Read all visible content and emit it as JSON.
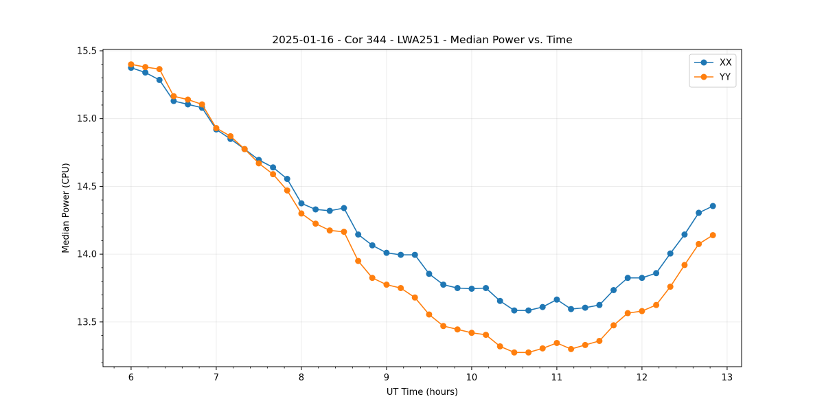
{
  "chart_data": {
    "type": "line",
    "title": "2025-01-16 - Cor 344 - LWA251 - Median Power vs. Time",
    "xlabel": "UT Time (hours)",
    "ylabel": "Median Power (CPU)",
    "xlim": [
      5.67,
      13.17
    ],
    "ylim": [
      13.17,
      15.51
    ],
    "xticks": [
      6,
      7,
      8,
      9,
      10,
      11,
      12,
      13
    ],
    "yticks": [
      13.5,
      14.0,
      14.5,
      15.0,
      15.5
    ],
    "xtick_labels": [
      "6",
      "7",
      "8",
      "9",
      "10",
      "11",
      "12",
      "13"
    ],
    "ytick_labels": [
      "13.5",
      "14.0",
      "14.5",
      "15.0",
      "15.5"
    ],
    "grid": true,
    "legend_position": "top-right",
    "x": [
      6.0,
      6.167,
      6.333,
      6.5,
      6.667,
      6.833,
      7.0,
      7.167,
      7.333,
      7.5,
      7.667,
      7.833,
      8.0,
      8.167,
      8.333,
      8.5,
      8.667,
      8.833,
      9.0,
      9.167,
      9.333,
      9.5,
      9.667,
      9.833,
      10.0,
      10.167,
      10.333,
      10.5,
      10.667,
      10.833,
      11.0,
      11.167,
      11.333,
      11.5,
      11.667,
      11.833,
      12.0,
      12.167,
      12.333,
      12.5,
      12.667,
      12.833
    ],
    "series": [
      {
        "name": "XX",
        "color": "#1f77b4",
        "values": [
          15.375,
          15.34,
          15.285,
          15.13,
          15.105,
          15.08,
          14.92,
          14.85,
          14.775,
          14.695,
          14.64,
          14.555,
          14.375,
          14.33,
          14.32,
          14.34,
          14.145,
          14.065,
          14.01,
          13.995,
          13.995,
          13.855,
          13.775,
          13.75,
          13.745,
          13.75,
          13.655,
          13.585,
          13.585,
          13.61,
          13.665,
          13.595,
          13.605,
          13.625,
          13.735,
          13.825,
          13.825,
          13.86,
          14.005,
          14.145,
          14.305,
          14.355
        ]
      },
      {
        "name": "YY",
        "color": "#ff7f0e",
        "values": [
          15.4,
          15.38,
          15.365,
          15.165,
          15.14,
          15.105,
          14.93,
          14.87,
          14.775,
          14.67,
          14.59,
          14.47,
          14.3,
          14.225,
          14.175,
          14.165,
          13.95,
          13.825,
          13.775,
          13.75,
          13.68,
          13.555,
          13.47,
          13.445,
          13.42,
          13.405,
          13.32,
          13.275,
          13.275,
          13.305,
          13.345,
          13.3,
          13.33,
          13.36,
          13.475,
          13.565,
          13.58,
          13.625,
          13.76,
          13.92,
          14.075,
          14.14
        ]
      }
    ]
  }
}
